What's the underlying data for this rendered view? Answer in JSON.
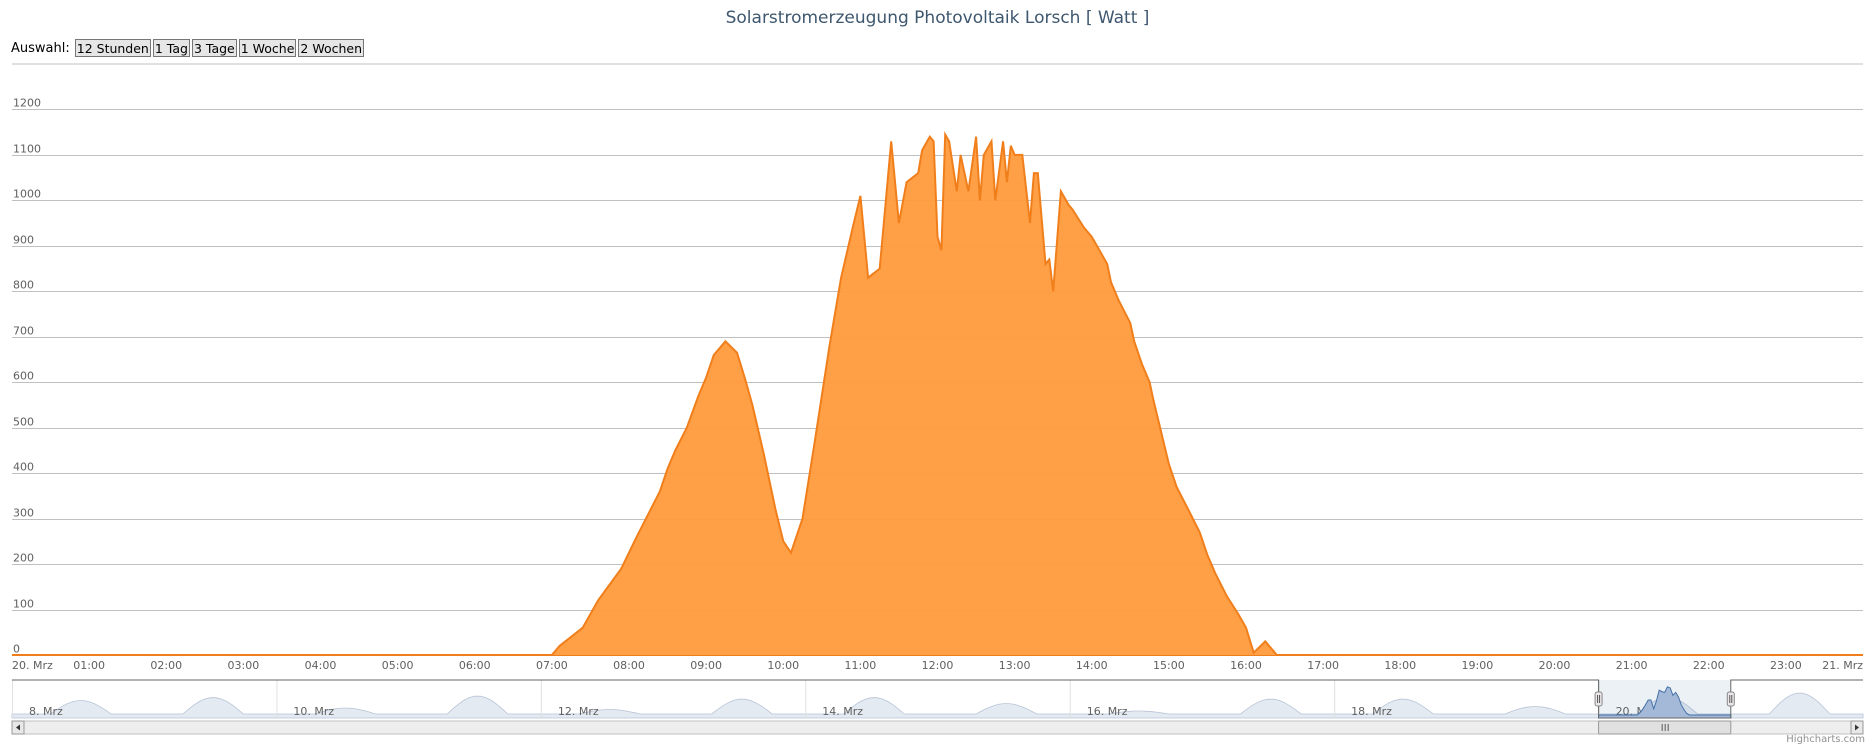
{
  "page": {
    "title": "Solarstromerzeugung Photovoltaik Lorsch [ Watt ]"
  },
  "range_selector": {
    "label": "Auswahl:",
    "buttons": [
      "12 Stunden",
      "1 Tag",
      "3 Tage",
      "1 Woche",
      "2 Wochen"
    ]
  },
  "credits": "Highcharts.com",
  "colors": {
    "series_fill": "#FF9A3C",
    "series_line": "#F07F1B",
    "navigator_fill": "#A4B8D8",
    "grid": "#C0C0C0"
  },
  "chart_data": {
    "type": "area",
    "title": "Solarstromerzeugung Photovoltaik Lorsch [ Watt ]",
    "xlabel": "",
    "ylabel": "",
    "ylim": [
      0,
      1200
    ],
    "xlim": [
      "20. Mrz 00:00",
      "21. Mrz 00:00"
    ],
    "grid": true,
    "y_ticks": [
      0,
      100,
      200,
      300,
      400,
      500,
      600,
      700,
      800,
      900,
      1000,
      1100,
      1200
    ],
    "x_tick_labels": [
      "20. Mrz",
      "01:00",
      "02:00",
      "03:00",
      "04:00",
      "05:00",
      "06:00",
      "07:00",
      "08:00",
      "09:00",
      "10:00",
      "11:00",
      "12:00",
      "13:00",
      "14:00",
      "15:00",
      "16:00",
      "17:00",
      "18:00",
      "19:00",
      "20:00",
      "21:00",
      "22:00",
      "23:00",
      "21. Mrz"
    ],
    "x_hours": [
      0,
      7.0,
      7.1,
      7.25,
      7.4,
      7.5,
      7.6,
      7.75,
      7.9,
      8.0,
      8.1,
      8.25,
      8.4,
      8.5,
      8.6,
      8.75,
      8.9,
      9.0,
      9.1,
      9.25,
      9.4,
      9.5,
      9.6,
      9.75,
      9.9,
      10.0,
      10.1,
      10.25,
      10.4,
      10.5,
      10.6,
      10.75,
      10.9,
      11.0,
      11.1,
      11.25,
      11.4,
      11.5,
      11.6,
      11.75,
      11.8,
      11.9,
      11.95,
      12.0,
      12.05,
      12.1,
      12.15,
      12.25,
      12.3,
      12.4,
      12.5,
      12.55,
      12.6,
      12.7,
      12.75,
      12.85,
      12.9,
      12.95,
      13.0,
      13.1,
      13.2,
      13.25,
      13.3,
      13.4,
      13.45,
      13.5,
      13.6,
      13.7,
      13.75,
      13.9,
      14.0,
      14.1,
      14.2,
      14.25,
      14.35,
      14.5,
      14.55,
      14.65,
      14.75,
      14.8,
      14.9,
      15.0,
      15.1,
      15.25,
      15.4,
      15.5,
      15.6,
      15.75,
      15.9,
      16.0,
      16.1,
      16.25,
      16.4,
      16.5,
      16.6,
      16.75,
      16.9,
      17.0,
      17.1,
      17.25,
      17.4,
      17.5,
      17.6,
      17.75,
      17.9,
      18.0,
      18.1,
      18.2,
      18.25,
      18.35,
      24
    ],
    "values": [
      0,
      0,
      20,
      40,
      60,
      90,
      120,
      155,
      190,
      225,
      260,
      310,
      360,
      410,
      450,
      500,
      570,
      610,
      660,
      690,
      665,
      610,
      550,
      440,
      320,
      250,
      225,
      300,
      460,
      570,
      680,
      830,
      940,
      1010,
      830,
      850,
      1130,
      950,
      1040,
      1060,
      1110,
      1140,
      1130,
      920,
      890,
      1145,
      1130,
      1020,
      1100,
      1020,
      1140,
      1000,
      1100,
      1130,
      1000,
      1130,
      1040,
      1120,
      1100,
      1100,
      950,
      1060,
      1060,
      860,
      870,
      800,
      1020,
      990,
      980,
      940,
      920,
      890,
      860,
      820,
      780,
      730,
      690,
      640,
      600,
      560,
      490,
      420,
      370,
      320,
      270,
      220,
      180,
      130,
      90,
      60,
      5,
      30,
      0,
      0,
      0,
      0,
      0,
      0,
      0,
      0,
      0,
      0,
      0,
      0,
      0,
      0,
      0,
      0,
      0,
      0,
      0
    ],
    "navigator": {
      "labels": [
        "8. Mrz",
        "10. Mrz",
        "12. Mrz",
        "14. Mrz",
        "16. Mrz",
        "18. Mrz",
        "20. Mrz"
      ],
      "selected_range": [
        "20. Mrz",
        "21. Mrz"
      ]
    }
  }
}
